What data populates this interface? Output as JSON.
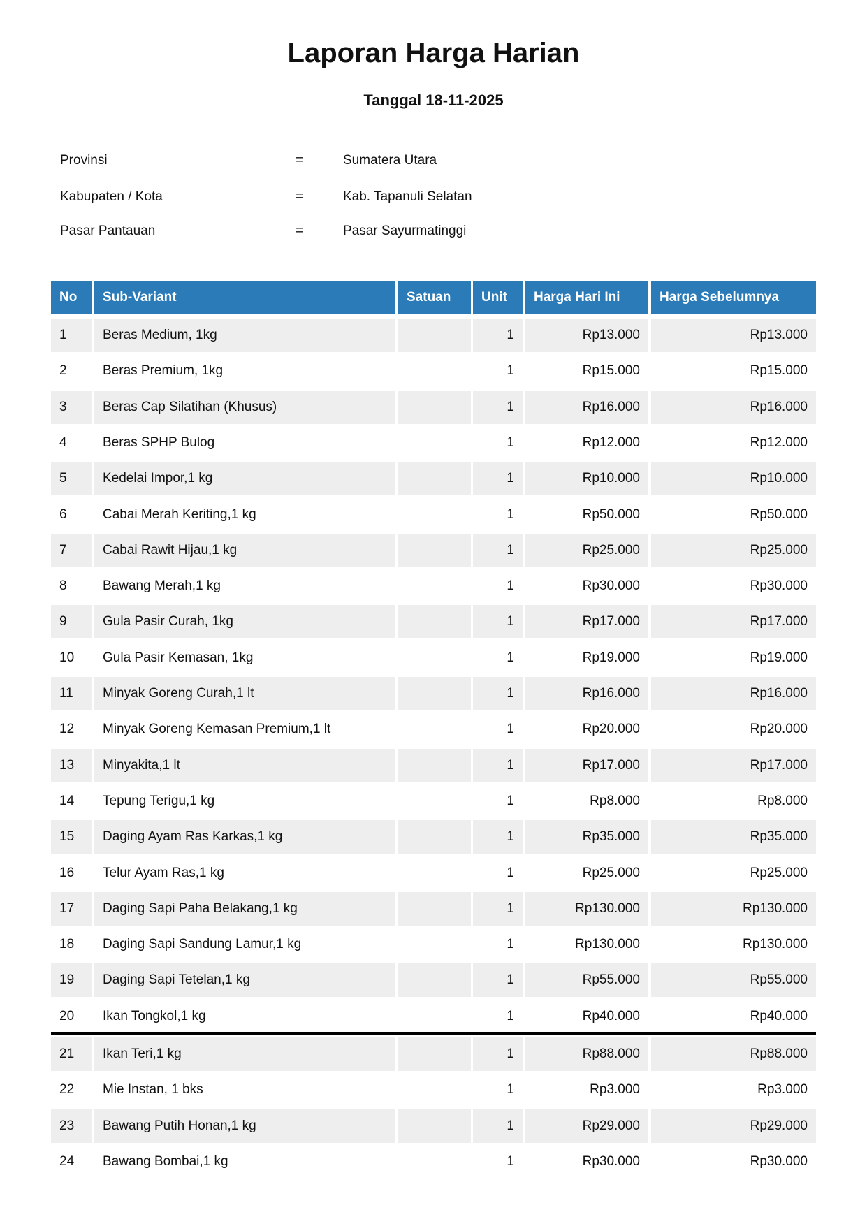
{
  "title": "Laporan Harga Harian",
  "subtitle": "Tanggal 18-11-2025",
  "info": [
    {
      "label": "Provinsi",
      "eq": "=",
      "value": "Sumatera Utara"
    },
    {
      "label": "Kabupaten / Kota",
      "eq": "=",
      "value": "Kab. Tapanuli Selatan"
    },
    {
      "label": "Pasar Pantauan",
      "eq": "=",
      "value": "Pasar Sayurmatinggi"
    }
  ],
  "colors": {
    "header": "#2a7bb8",
    "stripe": "#eeeeee"
  },
  "table": {
    "headers": [
      "No",
      "Sub-Variant",
      "Satuan",
      "Unit",
      "Harga Hari Ini",
      "Harga Sebelumnya"
    ],
    "rows": [
      [
        "1",
        "Beras Medium, 1kg",
        "",
        "1",
        "Rp13.000",
        "Rp13.000"
      ],
      [
        "2",
        "Beras Premium, 1kg",
        "",
        "1",
        "Rp15.000",
        "Rp15.000"
      ],
      [
        "3",
        "Beras Cap Silatihan (Khusus)",
        "",
        "1",
        "Rp16.000",
        "Rp16.000"
      ],
      [
        "4",
        "Beras SPHP Bulog",
        "",
        "1",
        "Rp12.000",
        "Rp12.000"
      ],
      [
        "5",
        "Kedelai Impor,1 kg",
        "",
        "1",
        "Rp10.000",
        "Rp10.000"
      ],
      [
        "6",
        "Cabai Merah Keriting,1 kg",
        "",
        "1",
        "Rp50.000",
        "Rp50.000"
      ],
      [
        "7",
        "Cabai Rawit Hijau,1 kg",
        "",
        "1",
        "Rp25.000",
        "Rp25.000"
      ],
      [
        "8",
        "Bawang Merah,1 kg",
        "",
        "1",
        "Rp30.000",
        "Rp30.000"
      ],
      [
        "9",
        "Gula Pasir Curah, 1kg",
        "",
        "1",
        "Rp17.000",
        "Rp17.000"
      ],
      [
        "10",
        "Gula Pasir Kemasan, 1kg",
        "",
        "1",
        "Rp19.000",
        "Rp19.000"
      ],
      [
        "11",
        "Minyak Goreng Curah,1 lt",
        "",
        "1",
        "Rp16.000",
        "Rp16.000"
      ],
      [
        "12",
        "Minyak Goreng Kemasan Premium,1 lt",
        "",
        "1",
        "Rp20.000",
        "Rp20.000"
      ],
      [
        "13",
        "Minyakita,1 lt",
        "",
        "1",
        "Rp17.000",
        "Rp17.000"
      ],
      [
        "14",
        "Tepung Terigu,1 kg",
        "",
        "1",
        "Rp8.000",
        "Rp8.000"
      ],
      [
        "15",
        "Daging Ayam Ras Karkas,1 kg",
        "",
        "1",
        "Rp35.000",
        "Rp35.000"
      ],
      [
        "16",
        "Telur Ayam Ras,1 kg",
        "",
        "1",
        "Rp25.000",
        "Rp25.000"
      ],
      [
        "17",
        "Daging Sapi Paha Belakang,1 kg",
        "",
        "1",
        "Rp130.000",
        "Rp130.000"
      ],
      [
        "18",
        "Daging Sapi Sandung Lamur,1 kg",
        "",
        "1",
        "Rp130.000",
        "Rp130.000"
      ],
      [
        "19",
        "Daging Sapi Tetelan,1 kg",
        "",
        "1",
        "Rp55.000",
        "Rp55.000"
      ],
      [
        "20",
        "Ikan Tongkol,1 kg",
        "",
        "1",
        "Rp40.000",
        "Rp40.000"
      ],
      [
        "21",
        "Ikan Teri,1 kg",
        "",
        "1",
        "Rp88.000",
        "Rp88.000"
      ],
      [
        "22",
        "Mie Instan, 1 bks",
        "",
        "1",
        "Rp3.000",
        "Rp3.000"
      ],
      [
        "23",
        "Bawang Putih Honan,1 kg",
        "",
        "1",
        "Rp29.000",
        "Rp29.000"
      ],
      [
        "24",
        "Bawang Bombai,1 kg",
        "",
        "1",
        "Rp30.000",
        "Rp30.000"
      ]
    ]
  }
}
